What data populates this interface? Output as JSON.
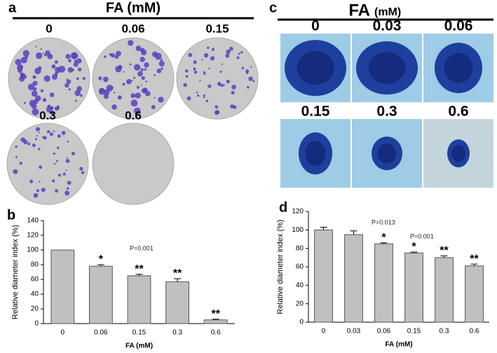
{
  "panel_a": {
    "letter": "a",
    "title": "FA (mM)",
    "labels": [
      "0",
      "0.06",
      "0.15",
      "0.3",
      "0.6"
    ]
  },
  "panel_c": {
    "letter": "c",
    "title": "FA",
    "title_unit": "(mM)",
    "labels": [
      "0",
      "0.03",
      "0.06",
      "0.15",
      "0.3",
      "0.6"
    ]
  },
  "chart_data": [
    {
      "type": "bar",
      "letter": "b",
      "ylabel": "Relative diameter index (%)",
      "xlabel": "FA (mM)",
      "categories": [
        "0",
        "0.06",
        "0.15",
        "0.3",
        "0.6"
      ],
      "values": [
        100,
        78,
        65,
        57,
        5
      ],
      "errors": [
        0,
        2,
        2,
        4,
        1
      ],
      "significance": [
        null,
        "*",
        "**",
        "**",
        "**"
      ],
      "annotations": [
        "P=0.001"
      ],
      "color": "#c0c0c0",
      "ylim": [
        0,
        140
      ],
      "yticks": [
        0,
        20,
        40,
        60,
        80,
        100,
        120,
        140
      ]
    },
    {
      "type": "bar",
      "letter": "d",
      "ylabel": "Relative diameter index (%)",
      "xlabel": "FA (mM)",
      "categories": [
        "0",
        "0.03",
        "0.06",
        "0.15",
        "0.3",
        "0.6"
      ],
      "values": [
        100,
        95,
        85,
        75,
        70,
        61
      ],
      "errors": [
        3,
        4,
        1,
        1,
        2,
        2
      ],
      "significance": [
        null,
        null,
        "*",
        "*",
        "**",
        "**"
      ],
      "annotations": [
        "P=0.013",
        "P=0.001"
      ],
      "color": "#c0c0c0",
      "ylim": [
        0,
        120
      ],
      "yticks": [
        0,
        20,
        40,
        60,
        80,
        100,
        120
      ]
    }
  ]
}
